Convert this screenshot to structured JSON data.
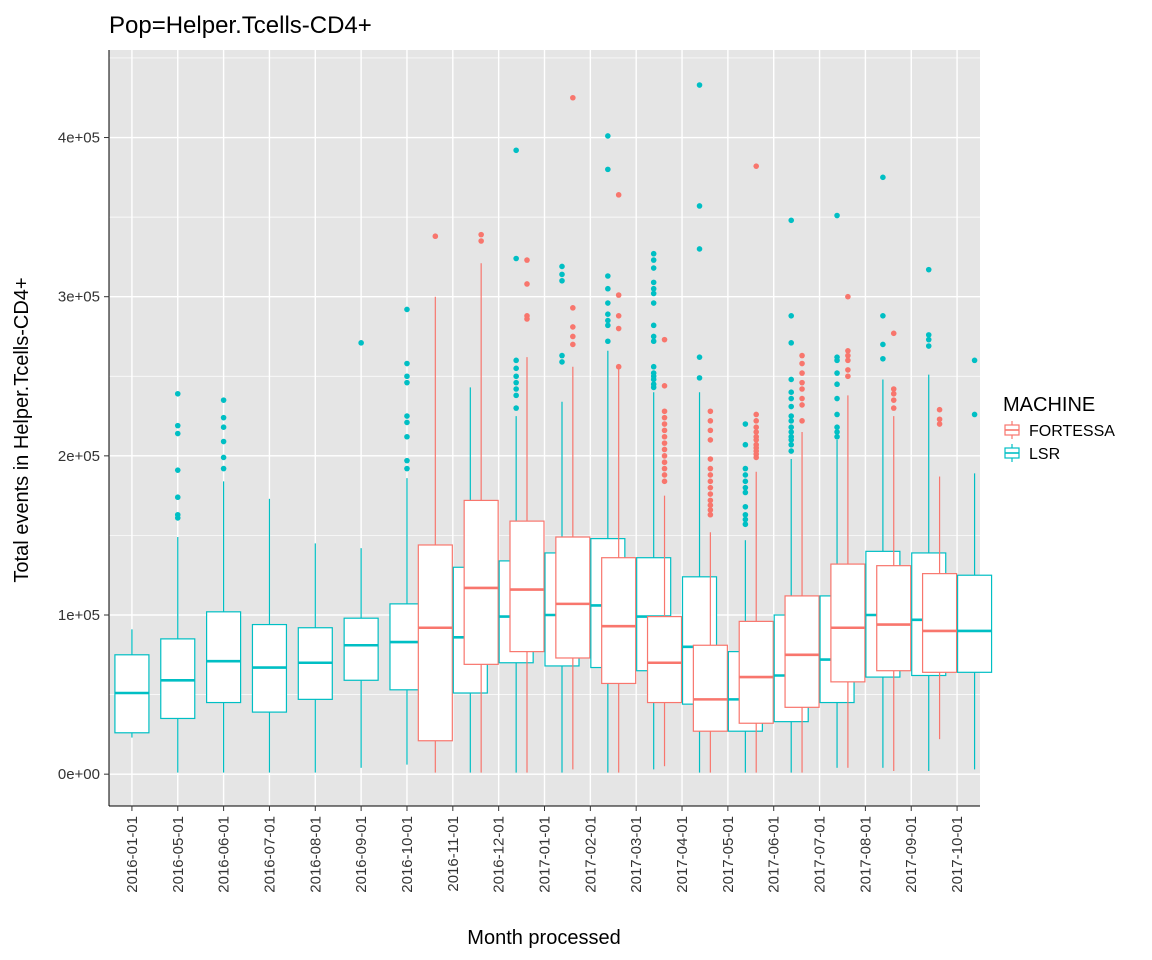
{
  "chart_data": {
    "type": "box",
    "title": "Pop=Helper.Tcells-CD4+",
    "xlabel": "Month processed",
    "ylabel": "Total events in Helper.Tcells-CD4+",
    "ylim": [
      -20000,
      455000
    ],
    "y_ticks": [
      0,
      100000,
      200000,
      300000,
      400000
    ],
    "y_tick_labels": [
      "0e+00",
      "1e+05",
      "2e+05",
      "3e+05",
      "4e+05"
    ],
    "grid": true,
    "legend": {
      "title": "MACHINE",
      "position": "right"
    },
    "colors": {
      "FORTESSA": "#F8766D",
      "LSR": "#00BFC4",
      "panel": "#E5E5E5",
      "grid": "#FFFFFF"
    },
    "categories": [
      "2016-01-01",
      "2016-05-01",
      "2016-06-01",
      "2016-07-01",
      "2016-08-01",
      "2016-09-01",
      "2016-10-01",
      "2016-11-01",
      "2016-12-01",
      "2017-01-01",
      "2017-02-01",
      "2017-03-01",
      "2017-04-01",
      "2017-05-01",
      "2017-06-01",
      "2017-07-01",
      "2017-08-01",
      "2017-09-01",
      "2017-10-01"
    ],
    "series": [
      {
        "name": "FORTESSA",
        "boxes": [
          null,
          null,
          null,
          null,
          null,
          null,
          null,
          {
            "min": 1000,
            "q1": 21000,
            "median": 92000,
            "q3": 144000,
            "max": 300000,
            "outliers": [
              338000
            ]
          },
          {
            "min": 1000,
            "q1": 69000,
            "median": 117000,
            "q3": 172000,
            "max": 321000,
            "outliers": [
              339000,
              335000
            ]
          },
          {
            "min": 1000,
            "q1": 77000,
            "median": 116000,
            "q3": 159000,
            "max": 262000,
            "outliers": [
              323000,
              308000,
              288000,
              286000
            ]
          },
          {
            "min": 3000,
            "q1": 73000,
            "median": 107000,
            "q3": 149000,
            "max": 256000,
            "outliers": [
              425000,
              293000,
              281000,
              275000,
              270000
            ]
          },
          {
            "min": 1000,
            "q1": 57000,
            "median": 93000,
            "q3": 136000,
            "max": 255000,
            "outliers": [
              364000,
              301000,
              288000,
              280000,
              256000
            ]
          },
          {
            "min": 5000,
            "q1": 45000,
            "median": 70000,
            "q3": 99000,
            "max": 175000,
            "outliers": [
              273000,
              244000,
              228000,
              224000,
              220000,
              216000,
              212000,
              208000,
              204000,
              200000,
              196000,
              192000,
              188000,
              184000
            ]
          },
          {
            "min": 1000,
            "q1": 27000,
            "median": 47000,
            "q3": 81000,
            "max": 152000,
            "outliers": [
              228000,
              222000,
              216000,
              210000,
              198000,
              192000,
              188000,
              184000,
              180000,
              176000,
              172000,
              169000,
              166000,
              163000
            ]
          },
          {
            "min": 1000,
            "q1": 32000,
            "median": 61000,
            "q3": 96000,
            "max": 190000,
            "outliers": [
              382000,
              226000,
              222000,
              218000,
              215000,
              212000,
              210000,
              207000,
              205000,
              203000,
              201000,
              199000
            ]
          },
          {
            "min": 1000,
            "q1": 42000,
            "median": 75000,
            "q3": 112000,
            "max": 215000,
            "outliers": [
              263000,
              258000,
              252000,
              246000,
              242000,
              236000,
              232000,
              222000
            ]
          },
          {
            "min": 4000,
            "q1": 58000,
            "median": 92000,
            "q3": 132000,
            "max": 238000,
            "outliers": [
              300000,
              266000,
              263000,
              260000,
              254000,
              250000
            ]
          },
          {
            "min": 2000,
            "q1": 65000,
            "median": 94000,
            "q3": 131000,
            "max": 225000,
            "outliers": [
              277000,
              242000,
              239000,
              235000,
              230000
            ]
          },
          {
            "min": 22000,
            "q1": 64000,
            "median": 90000,
            "q3": 126000,
            "max": 187000,
            "outliers": [
              229000,
              223000,
              220000
            ]
          }
        ]
      },
      {
        "name": "LSR",
        "boxes": [
          {
            "min": 23000,
            "q1": 26000,
            "median": 51000,
            "q3": 75000,
            "max": 91000,
            "outliers": []
          },
          {
            "min": 1000,
            "q1": 35000,
            "median": 59000,
            "q3": 85000,
            "max": 149000,
            "outliers": [
              239000,
              219000,
              214000,
              191000,
              174000,
              163000,
              161000
            ]
          },
          {
            "min": 1000,
            "q1": 45000,
            "median": 71000,
            "q3": 102000,
            "max": 184000,
            "outliers": [
              235000,
              224000,
              218000,
              209000,
              199000,
              192000
            ]
          },
          {
            "min": 1000,
            "q1": 39000,
            "median": 67000,
            "q3": 94000,
            "max": 173000,
            "outliers": []
          },
          {
            "min": 1000,
            "q1": 47000,
            "median": 70000,
            "q3": 92000,
            "max": 145000,
            "outliers": []
          },
          {
            "min": 4000,
            "q1": 59000,
            "median": 81000,
            "q3": 98000,
            "max": 142000,
            "outliers": [
              271000
            ]
          },
          {
            "min": 6000,
            "q1": 53000,
            "median": 83000,
            "q3": 107000,
            "max": 186000,
            "outliers": [
              292000,
              258000,
              250000,
              246000,
              225000,
              221000,
              212000,
              197000,
              192000
            ]
          },
          {
            "min": 1000,
            "q1": 51000,
            "median": 86000,
            "q3": 130000,
            "max": 243000,
            "outliers": []
          },
          {
            "min": 1000,
            "q1": 70000,
            "median": 99000,
            "q3": 134000,
            "max": 225000,
            "outliers": [
              392000,
              324000,
              260000,
              255000,
              250000,
              246000,
              242000,
              238000,
              230000
            ]
          },
          {
            "min": 1000,
            "q1": 68000,
            "median": 100000,
            "q3": 139000,
            "max": 234000,
            "outliers": [
              319000,
              314000,
              310000,
              263000,
              259000
            ]
          },
          {
            "min": 1000,
            "q1": 67000,
            "median": 106000,
            "q3": 148000,
            "max": 266000,
            "outliers": [
              401000,
              380000,
              313000,
              305000,
              296000,
              289000,
              285000,
              282000,
              272000
            ]
          },
          {
            "min": 3000,
            "q1": 65000,
            "median": 99000,
            "q3": 136000,
            "max": 240000,
            "outliers": [
              327000,
              323000,
              318000,
              309000,
              305000,
              302000,
              296000,
              282000,
              275000,
              272000,
              256000,
              252000,
              250000,
              248000,
              245000,
              243000
            ]
          },
          {
            "min": 1000,
            "q1": 44000,
            "median": 80000,
            "q3": 124000,
            "max": 240000,
            "outliers": [
              433000,
              357000,
              330000,
              262000,
              249000
            ]
          },
          {
            "min": 1000,
            "q1": 27000,
            "median": 47000,
            "q3": 77000,
            "max": 147000,
            "outliers": [
              220000,
              207000,
              192000,
              188000,
              184000,
              180000,
              177000,
              168000,
              163000,
              160000,
              157000
            ]
          },
          {
            "min": 1000,
            "q1": 33000,
            "median": 62000,
            "q3": 100000,
            "max": 198000,
            "outliers": [
              348000,
              288000,
              271000,
              248000,
              240000,
              236000,
              231000,
              225000,
              222000,
              218000,
              215000,
              212000,
              210000,
              207000,
              203000
            ]
          },
          {
            "min": 4000,
            "q1": 45000,
            "median": 72000,
            "q3": 112000,
            "max": 210000,
            "outliers": [
              351000,
              262000,
              260000,
              252000,
              245000,
              236000,
              226000,
              218000,
              215000,
              212000
            ]
          },
          {
            "min": 4000,
            "q1": 61000,
            "median": 100000,
            "q3": 140000,
            "max": 248000,
            "outliers": [
              375000,
              288000,
              270000,
              261000
            ]
          },
          {
            "min": 2000,
            "q1": 62000,
            "median": 97000,
            "q3": 139000,
            "max": 251000,
            "outliers": [
              317000,
              276000,
              273000,
              269000
            ]
          },
          {
            "min": 3000,
            "q1": 64000,
            "median": 90000,
            "q3": 125000,
            "max": 189000,
            "outliers": [
              260000,
              226000
            ]
          }
        ]
      }
    ]
  }
}
